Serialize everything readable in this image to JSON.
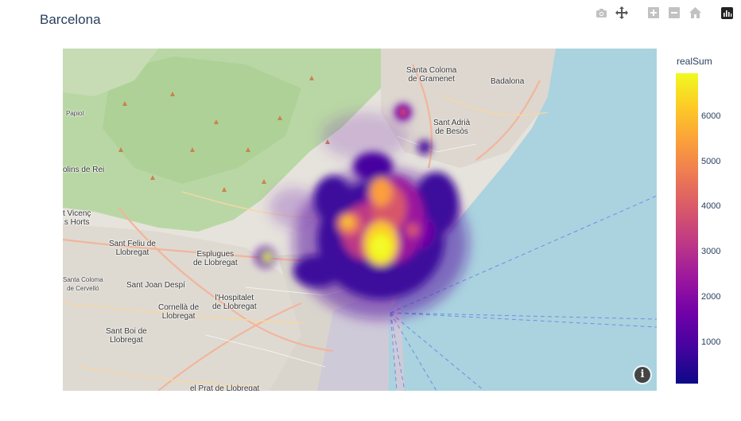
{
  "title": "Barcelona",
  "modebar": {
    "icons": [
      "camera-icon",
      "pan-icon",
      "zoom-in-icon",
      "zoom-out-icon",
      "home-icon",
      "plotly-logo-icon"
    ]
  },
  "map": {
    "places": [
      {
        "id": "santa-coloma",
        "label": "Santa Coloma\nde Gramenet"
      },
      {
        "id": "badalona",
        "label": "Badalona"
      },
      {
        "id": "sant-adria",
        "label": "Sant Adrià\nde Besòs"
      },
      {
        "id": "papiol",
        "label": "Papiol"
      },
      {
        "id": "molins",
        "label": "olins de Rei"
      },
      {
        "id": "sant-vicenc",
        "label": "t Vicenç\ns Horts"
      },
      {
        "id": "sant-feliu",
        "label": "Sant Feliu de\nLlobregat"
      },
      {
        "id": "esplugues",
        "label": "Esplugues\nde Llobregat"
      },
      {
        "id": "santa-coloma-cervello",
        "label": "Santa Coloma\nde Cervelló"
      },
      {
        "id": "sant-joan-despi",
        "label": "Sant Joan Despí"
      },
      {
        "id": "cornella",
        "label": "Cornellà de\nLlobregat"
      },
      {
        "id": "hospitalet",
        "label": "l'Hospitalet\nde Llobregat"
      },
      {
        "id": "sant-boi",
        "label": "Sant Boi de\nLlobregat"
      },
      {
        "id": "prat",
        "label": "el Prat de Llobregat"
      }
    ],
    "info_label": "i"
  },
  "colorbar": {
    "title": "realSum",
    "ticks": [
      "6000",
      "5000",
      "4000",
      "3000",
      "2000",
      "1000"
    ],
    "colors": [
      "#f0f921",
      "#fdca26",
      "#fb9f3a",
      "#ed7953",
      "#d8576b",
      "#bd3786",
      "#9c179e",
      "#7201a8",
      "#46039f",
      "#0d0887"
    ]
  }
}
